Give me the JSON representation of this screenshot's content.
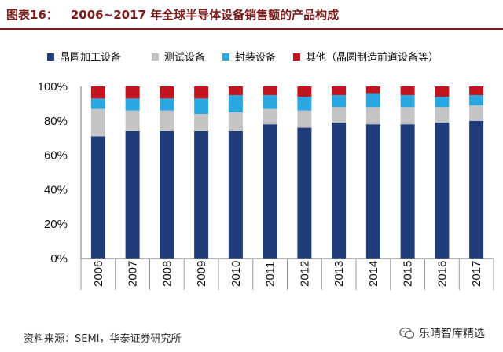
{
  "header": {
    "figure_number": "图表16：",
    "title": "2006~2017 年全球半导体设备销售额的产品构成"
  },
  "source": "资料来源：SEMI，华泰证券研究所",
  "watermark": "乐晴智库精选",
  "chart_data": {
    "type": "bar",
    "stacked": true,
    "categories": [
      "2006",
      "2007",
      "2008",
      "2009",
      "2010",
      "2011",
      "2012",
      "2013",
      "2014",
      "2015",
      "2016",
      "2017"
    ],
    "series": [
      {
        "name": "晶圆加工设备",
        "color": "#1f3d7a",
        "values": [
          71,
          74,
          74,
          74,
          74,
          78,
          76,
          79,
          78,
          78,
          79,
          80
        ]
      },
      {
        "name": "测试设备",
        "color": "#c4c4c4",
        "values": [
          16,
          12,
          12,
          10,
          11,
          9,
          10,
          9,
          10,
          10,
          9,
          9
        ]
      },
      {
        "name": "封装设备",
        "color": "#2aa6e0",
        "values": [
          6,
          7,
          7,
          9,
          10,
          8,
          8,
          7,
          8,
          7,
          6,
          6
        ]
      },
      {
        "name": "其他（晶圆制造前道设备等）",
        "color": "#c0141f",
        "values": [
          7,
          7,
          7,
          7,
          5,
          5,
          6,
          5,
          4,
          5,
          6,
          5
        ]
      }
    ],
    "yticks": [
      "0%",
      "20%",
      "40%",
      "60%",
      "80%",
      "100%"
    ],
    "ylim": [
      0,
      100
    ],
    "legend_position": "top"
  }
}
